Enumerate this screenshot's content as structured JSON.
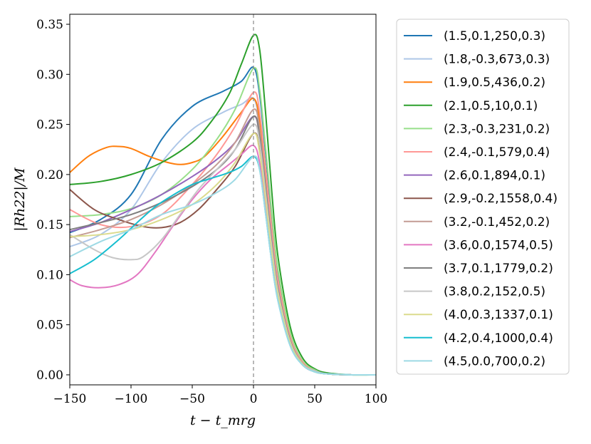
{
  "chart_data": {
    "type": "line",
    "title": "",
    "xlabel": "t − t_mrg",
    "ylabel": "|Rh22|/M",
    "xlim": [
      -150,
      100
    ],
    "ylim": [
      -0.01,
      0.36
    ],
    "xticks": [
      -150,
      -100,
      -50,
      0,
      50,
      100
    ],
    "xtick_labels": [
      "−150",
      "−100",
      "−50",
      "0",
      "50",
      "100"
    ],
    "yticks": [
      0.0,
      0.05,
      0.1,
      0.15,
      0.2,
      0.25,
      0.3,
      0.35
    ],
    "ytick_labels": [
      "0.00",
      "0.05",
      "0.10",
      "0.15",
      "0.20",
      "0.25",
      "0.30",
      "0.35"
    ],
    "vline_x": 0,
    "legend_position": "outside-right",
    "series": [
      {
        "name": "(1.5,0.1,250,0.3)",
        "color": "#1f77b4",
        "x": [
          -150,
          -125,
          -100,
          -75,
          -50,
          -25,
          -10,
          0,
          5,
          10,
          15,
          20,
          30,
          40,
          50,
          60,
          80,
          100
        ],
        "values": [
          0.142,
          0.155,
          0.18,
          0.235,
          0.268,
          0.283,
          0.293,
          0.307,
          0.28,
          0.22,
          0.155,
          0.1,
          0.04,
          0.013,
          0.004,
          0.001,
          0.0,
          0.0
        ]
      },
      {
        "name": "(1.8,-0.3,673,0.3)",
        "color": "#aec7e8",
        "x": [
          -150,
          -125,
          -100,
          -75,
          -50,
          -25,
          -10,
          0,
          5,
          10,
          15,
          20,
          30,
          40,
          50,
          60,
          80,
          100
        ],
        "values": [
          0.128,
          0.14,
          0.165,
          0.212,
          0.245,
          0.262,
          0.27,
          0.276,
          0.25,
          0.195,
          0.138,
          0.09,
          0.036,
          0.012,
          0.004,
          0.001,
          0.0,
          0.0
        ]
      },
      {
        "name": "(1.9,0.5,436,0.2)",
        "color": "#ff7f0e",
        "x": [
          -150,
          -135,
          -120,
          -110,
          -100,
          -85,
          -70,
          -60,
          -50,
          -40,
          -25,
          -10,
          0,
          5,
          10,
          15,
          20,
          30,
          40,
          50,
          60,
          80,
          100
        ],
        "values": [
          0.202,
          0.218,
          0.227,
          0.228,
          0.226,
          0.218,
          0.212,
          0.21,
          0.212,
          0.218,
          0.238,
          0.262,
          0.276,
          0.255,
          0.2,
          0.142,
          0.093,
          0.037,
          0.012,
          0.004,
          0.001,
          0.0,
          0.0
        ]
      },
      {
        "name": "(2.1,0.5,10,0.1)",
        "color": "#2ca02c",
        "x": [
          -150,
          -125,
          -100,
          -75,
          -50,
          -35,
          -20,
          -10,
          0,
          5,
          10,
          15,
          20,
          30,
          40,
          50,
          60,
          80,
          100
        ],
        "values": [
          0.19,
          0.193,
          0.2,
          0.212,
          0.232,
          0.252,
          0.28,
          0.31,
          0.339,
          0.325,
          0.26,
          0.182,
          0.118,
          0.048,
          0.017,
          0.006,
          0.002,
          0.0,
          0.0
        ]
      },
      {
        "name": "(2.3,-0.3,231,0.2)",
        "color": "#98df8a",
        "x": [
          -150,
          -125,
          -100,
          -75,
          -50,
          -30,
          -15,
          0,
          5,
          10,
          15,
          20,
          30,
          40,
          50,
          60,
          80,
          100
        ],
        "values": [
          0.158,
          0.16,
          0.166,
          0.18,
          0.205,
          0.235,
          0.265,
          0.306,
          0.285,
          0.225,
          0.16,
          0.105,
          0.042,
          0.014,
          0.005,
          0.001,
          0.0,
          0.0
        ]
      },
      {
        "name": "(2.4,-0.1,579,0.4)",
        "color": "#ff9896",
        "x": [
          -150,
          -125,
          -100,
          -75,
          -50,
          -30,
          -15,
          0,
          5,
          10,
          15,
          20,
          30,
          40,
          50,
          60,
          80,
          100
        ],
        "values": [
          0.165,
          0.15,
          0.148,
          0.16,
          0.19,
          0.22,
          0.248,
          0.282,
          0.262,
          0.205,
          0.145,
          0.095,
          0.038,
          0.013,
          0.004,
          0.001,
          0.0,
          0.0
        ]
      },
      {
        "name": "(2.6,0.1,894,0.1)",
        "color": "#9467bd",
        "x": [
          -150,
          -125,
          -100,
          -75,
          -50,
          -30,
          -15,
          0,
          5,
          10,
          15,
          20,
          30,
          40,
          50,
          60,
          80,
          100
        ],
        "values": [
          0.143,
          0.152,
          0.165,
          0.18,
          0.198,
          0.215,
          0.232,
          0.258,
          0.238,
          0.185,
          0.13,
          0.085,
          0.034,
          0.011,
          0.004,
          0.001,
          0.0,
          0.0
        ]
      },
      {
        "name": "(2.9,-0.2,1558,0.4)",
        "color": "#8c564b",
        "x": [
          -150,
          -130,
          -110,
          -90,
          -75,
          -60,
          -45,
          -30,
          -15,
          0,
          5,
          10,
          15,
          20,
          30,
          40,
          50,
          60,
          80,
          100
        ],
        "values": [
          0.185,
          0.165,
          0.155,
          0.148,
          0.147,
          0.152,
          0.165,
          0.185,
          0.208,
          0.241,
          0.224,
          0.176,
          0.124,
          0.082,
          0.033,
          0.011,
          0.004,
          0.001,
          0.0,
          0.0
        ]
      },
      {
        "name": "(3.2,-0.1,452,0.2)",
        "color": "#c49c94",
        "x": [
          -150,
          -125,
          -100,
          -75,
          -50,
          -30,
          -15,
          0,
          5,
          10,
          15,
          20,
          30,
          40,
          50,
          60,
          80,
          100
        ],
        "values": [
          0.137,
          0.145,
          0.155,
          0.17,
          0.19,
          0.21,
          0.232,
          0.265,
          0.245,
          0.19,
          0.135,
          0.088,
          0.035,
          0.012,
          0.004,
          0.001,
          0.0,
          0.0
        ]
      },
      {
        "name": "(3.6,0.0,1574,0.5)",
        "color": "#e377c2",
        "x": [
          -150,
          -140,
          -125,
          -110,
          -95,
          -80,
          -65,
          -50,
          -35,
          -20,
          -10,
          0,
          5,
          10,
          15,
          20,
          30,
          40,
          50,
          60,
          80,
          100
        ],
        "values": [
          0.095,
          0.089,
          0.087,
          0.09,
          0.1,
          0.123,
          0.15,
          0.175,
          0.195,
          0.21,
          0.22,
          0.229,
          0.212,
          0.165,
          0.115,
          0.076,
          0.03,
          0.01,
          0.003,
          0.001,
          0.0,
          0.0
        ]
      },
      {
        "name": "(3.7,0.1,1779,0.2)",
        "color": "#7f7f7f",
        "x": [
          -150,
          -125,
          -100,
          -75,
          -50,
          -30,
          -15,
          0,
          5,
          10,
          15,
          20,
          30,
          40,
          50,
          60,
          80,
          100
        ],
        "values": [
          0.145,
          0.152,
          0.16,
          0.172,
          0.188,
          0.205,
          0.225,
          0.258,
          0.238,
          0.185,
          0.13,
          0.085,
          0.034,
          0.011,
          0.004,
          0.001,
          0.0,
          0.0
        ]
      },
      {
        "name": "(3.8,0.2,152,0.5)",
        "color": "#c7c7c7",
        "x": [
          -150,
          -130,
          -115,
          -100,
          -90,
          -75,
          -60,
          -45,
          -30,
          -15,
          0,
          5,
          10,
          15,
          20,
          30,
          40,
          50,
          60,
          80,
          100
        ],
        "values": [
          0.14,
          0.125,
          0.117,
          0.115,
          0.118,
          0.135,
          0.16,
          0.185,
          0.205,
          0.225,
          0.25,
          0.232,
          0.18,
          0.127,
          0.083,
          0.033,
          0.011,
          0.004,
          0.001,
          0.0,
          0.0
        ]
      },
      {
        "name": "(4.0,0.3,1337,0.1)",
        "color": "#dbdb8d",
        "x": [
          -150,
          -125,
          -100,
          -75,
          -50,
          -30,
          -15,
          0,
          5,
          10,
          15,
          20,
          30,
          40,
          50,
          60,
          80,
          100
        ],
        "values": [
          0.138,
          0.14,
          0.145,
          0.155,
          0.17,
          0.19,
          0.212,
          0.241,
          0.222,
          0.174,
          0.122,
          0.08,
          0.032,
          0.011,
          0.003,
          0.001,
          0.0,
          0.0
        ]
      },
      {
        "name": "(4.2,0.4,1000,0.4)",
        "color": "#17becf",
        "x": [
          -150,
          -130,
          -110,
          -95,
          -80,
          -65,
          -50,
          -35,
          -20,
          -10,
          0,
          5,
          10,
          15,
          20,
          30,
          40,
          50,
          60,
          80,
          100
        ],
        "values": [
          0.101,
          0.115,
          0.135,
          0.152,
          0.168,
          0.18,
          0.19,
          0.196,
          0.202,
          0.208,
          0.218,
          0.205,
          0.16,
          0.112,
          0.074,
          0.029,
          0.01,
          0.003,
          0.001,
          0.0,
          0.0
        ]
      },
      {
        "name": "(4.5,0.0,700,0.2)",
        "color": "#9edae5",
        "x": [
          -150,
          -125,
          -100,
          -75,
          -50,
          -30,
          -15,
          0,
          5,
          10,
          15,
          20,
          30,
          40,
          50,
          60,
          80,
          100
        ],
        "values": [
          0.118,
          0.133,
          0.145,
          0.16,
          0.17,
          0.182,
          0.195,
          0.218,
          0.205,
          0.16,
          0.112,
          0.074,
          0.029,
          0.01,
          0.003,
          0.001,
          0.0,
          0.0
        ]
      }
    ]
  }
}
